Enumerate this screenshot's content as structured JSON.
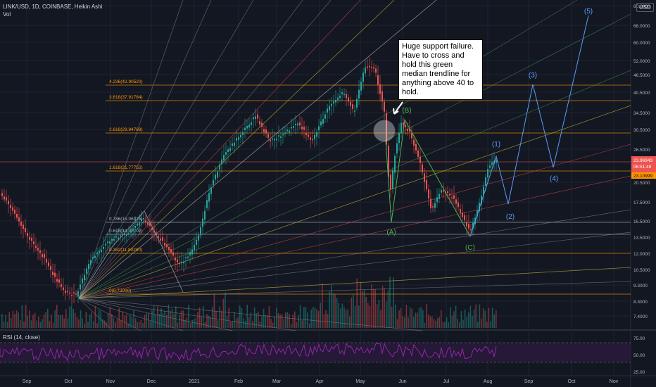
{
  "header": {
    "title": "LINK/USD, 1D, COINBASE, Heikin Ashi",
    "volume_label": "Vol",
    "currency": "USD"
  },
  "annotation": {
    "text": "Huge support failure. Have to cross and hold this green median trendline for anything above 40 to hold."
  },
  "fib_levels": [
    {
      "label": "4.236(42.90520)",
      "color": "#ff9800"
    },
    {
      "label": "3.618(37.91784)",
      "color": "#ff9800"
    },
    {
      "label": "2.618(29.84768)",
      "color": "#ff9800"
    },
    {
      "label": "1.618(21.77752)",
      "color": "#ff9800"
    },
    {
      "label": "0.786(15.06325)",
      "color": "#b2b5be"
    },
    {
      "label": "0.618(13.70702)",
      "color": "#b2b5be"
    },
    {
      "label": "0.382(11.80280)",
      "color": "#ff9800"
    },
    {
      "label": "0(8.72000)",
      "color": "#ff9800"
    }
  ],
  "wave_labels": [
    {
      "text": "(A)",
      "color": "#4caf50"
    },
    {
      "text": "(B)",
      "color": "#4caf50"
    },
    {
      "text": "(C)",
      "color": "#4caf50"
    },
    {
      "text": "(1)",
      "color": "#5b9cf6"
    },
    {
      "text": "(2)",
      "color": "#5b9cf6"
    },
    {
      "text": "(3)",
      "color": "#5b9cf6"
    },
    {
      "text": "(4)",
      "color": "#5b9cf6"
    },
    {
      "text": "(5)",
      "color": "#5b9cf6"
    }
  ],
  "price_axis": [
    "80.0000",
    "68.0000",
    "60.0000",
    "52.0000",
    "46.5000",
    "40.5000",
    "34.5000",
    "30.5000",
    "26.5000",
    "20.5000",
    "17.5000",
    "15.5000",
    "13.5000",
    "12.0000",
    "10.5000",
    "9.3000",
    "8.3000",
    "7.4000"
  ],
  "price_badges": {
    "last": "23.96943",
    "countdown": "06:51:49",
    "level": "23.10999"
  },
  "rsi": {
    "label": "RSI (14, close)",
    "ticks": [
      "75.00",
      "50.00",
      "25.00"
    ]
  },
  "time_axis": [
    "Sep",
    "Oct",
    "Nov",
    "Dec",
    "2021",
    "Feb",
    "Mar",
    "Apr",
    "May",
    "Jun",
    "Jul",
    "Aug",
    "Sep",
    "Oct",
    "Nov"
  ],
  "colors": {
    "background": "#131722",
    "up": "#26a69a",
    "down": "#ef5350",
    "rsi_line": "#9c27b0",
    "rsi_band": "#2a1a3d",
    "price_badge": "#ef5350"
  }
}
